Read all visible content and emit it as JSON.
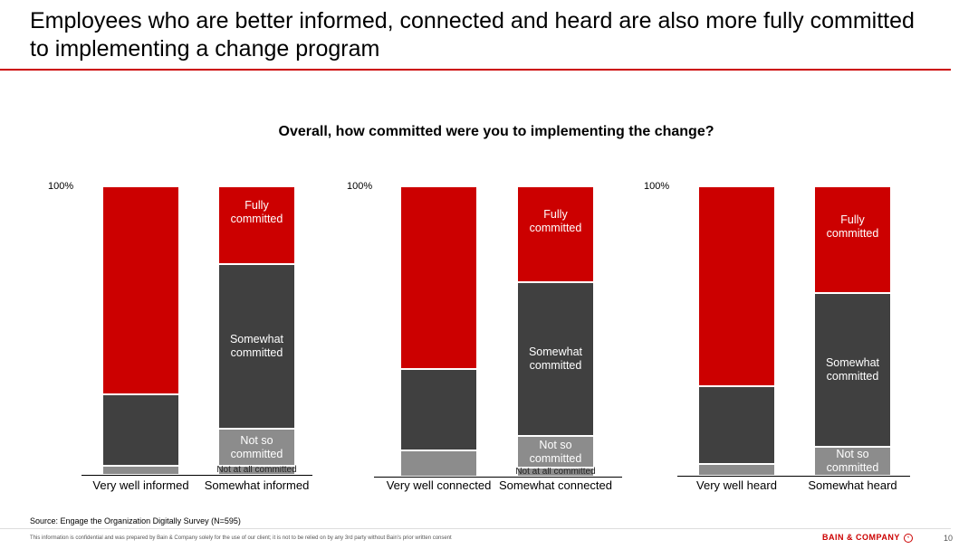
{
  "title": "Employees who are better informed, connected and heard are also more fully committed to implementing a change program",
  "colors": {
    "fully": "#cc0000",
    "somewhat": "#404040",
    "not_so": "#8c8c8c",
    "not_at_all": "#8c8c8c",
    "accent": "#cc0000"
  },
  "chart_data": [
    {
      "type": "bar",
      "stacked": true,
      "title": "Overall, how committed were you to implementing the change?",
      "ytop_label": "100%",
      "ylim": [
        0,
        100
      ],
      "categories": [
        "Very well informed",
        "Somewhat informed"
      ],
      "series": [
        {
          "name": "Fully committed",
          "key": "fully",
          "values": [
            72,
            27
          ]
        },
        {
          "name": "Somewhat committed",
          "key": "somewhat",
          "values": [
            25,
            57
          ]
        },
        {
          "name": "Not so committed",
          "key": "not_so",
          "values": [
            3,
            13
          ]
        },
        {
          "name": "Not at all committed",
          "key": "not_at_all",
          "values": [
            0,
            3
          ]
        }
      ]
    },
    {
      "type": "bar",
      "stacked": true,
      "ytop_label": "100%",
      "ylim": [
        0,
        100
      ],
      "categories": [
        "Very well connected",
        "Somewhat connected"
      ],
      "series": [
        {
          "name": "Fully committed",
          "key": "fully",
          "values": [
            63,
            33
          ]
        },
        {
          "name": "Somewhat committed",
          "key": "somewhat",
          "values": [
            28,
            53
          ]
        },
        {
          "name": "Not so committed",
          "key": "not_so",
          "values": [
            9,
            11
          ]
        },
        {
          "name": "Not at all committed",
          "key": "not_at_all",
          "values": [
            0,
            3
          ]
        }
      ]
    },
    {
      "type": "bar",
      "stacked": true,
      "ytop_label": "100%",
      "ylim": [
        0,
        100
      ],
      "categories": [
        "Very well  heard",
        "Somewhat heard"
      ],
      "series": [
        {
          "name": "Fully committed",
          "key": "fully",
          "values": [
            69,
            37
          ]
        },
        {
          "name": "Somewhat committed",
          "key": "somewhat",
          "values": [
            27,
            53
          ]
        },
        {
          "name": "Not so committed",
          "key": "not_so",
          "values": [
            4,
            10
          ]
        },
        {
          "name": "Not at all committed",
          "key": "not_at_all",
          "values": [
            0,
            0
          ]
        }
      ]
    }
  ],
  "labels": {
    "fully": "Fully committed",
    "somewhat": "Somewhat committed",
    "not_so": "Not so committed",
    "not_at_all": "Not at all committed"
  },
  "footer": {
    "source": "Source: Engage the Organization Digitally Survey (N=595)",
    "confidential": "This information is confidential and was prepared by Bain & Company solely for the use of our client; it is not to be relied on by any 3rd party without Bain's prior written consent",
    "logo": "BAIN & COMPANY",
    "page": "10"
  }
}
